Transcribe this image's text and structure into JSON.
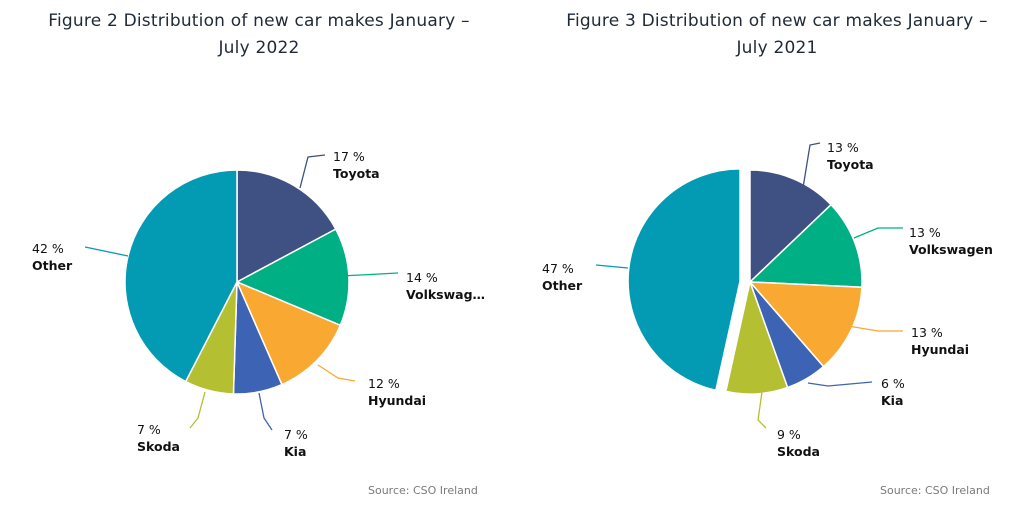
{
  "chart_data": [
    {
      "type": "pie",
      "title_line1": "Figure 2 Distribution of new car makes January –",
      "title_line2": "July 2022",
      "source": "Source: CSO Ireland",
      "slices": [
        {
          "label": "Toyota",
          "display_label": "Toyota",
          "value": 17,
          "value_label": "17 %",
          "color": "#3e5182"
        },
        {
          "label": "Volkswagen",
          "display_label": "Volkswag…",
          "value": 14,
          "value_label": "14 %",
          "color": "#00b084"
        },
        {
          "label": "Hyundai",
          "display_label": "Hyundai",
          "value": 12,
          "value_label": "12 %",
          "color": "#f9a832"
        },
        {
          "label": "Kia",
          "display_label": "Kia",
          "value": 7,
          "value_label": "7 %",
          "color": "#3d63b5"
        },
        {
          "label": "Skoda",
          "display_label": "Skoda",
          "value": 7,
          "value_label": "7 %",
          "color": "#b4bf32"
        },
        {
          "label": "Other",
          "display_label": "Other",
          "value": 42,
          "value_label": "42 %",
          "color": "#039bb3"
        }
      ]
    },
    {
      "type": "pie",
      "title_line1": "Figure 3 Distribution of new car makes January –",
      "title_line2": "July 2021",
      "source": "Source: CSO Ireland",
      "slices": [
        {
          "label": "Toyota",
          "display_label": "Toyota",
          "value": 13,
          "value_label": "13 %",
          "color": "#3e5182"
        },
        {
          "label": "Volkswagen",
          "display_label": "Volkswagen",
          "value": 13,
          "value_label": "13 %",
          "color": "#00b084"
        },
        {
          "label": "Hyundai",
          "display_label": "Hyundai",
          "value": 13,
          "value_label": "13 %",
          "color": "#f9a832"
        },
        {
          "label": "Kia",
          "display_label": "Kia",
          "value": 6,
          "value_label": "6 %",
          "color": "#3d63b5"
        },
        {
          "label": "Skoda",
          "display_label": "Skoda",
          "value": 9,
          "value_label": "9 %",
          "color": "#b4bf32"
        },
        {
          "label": "Other",
          "display_label": "Other",
          "value": 47,
          "value_label": "47 %",
          "color": "#039bb3",
          "exploded": true
        }
      ]
    }
  ]
}
